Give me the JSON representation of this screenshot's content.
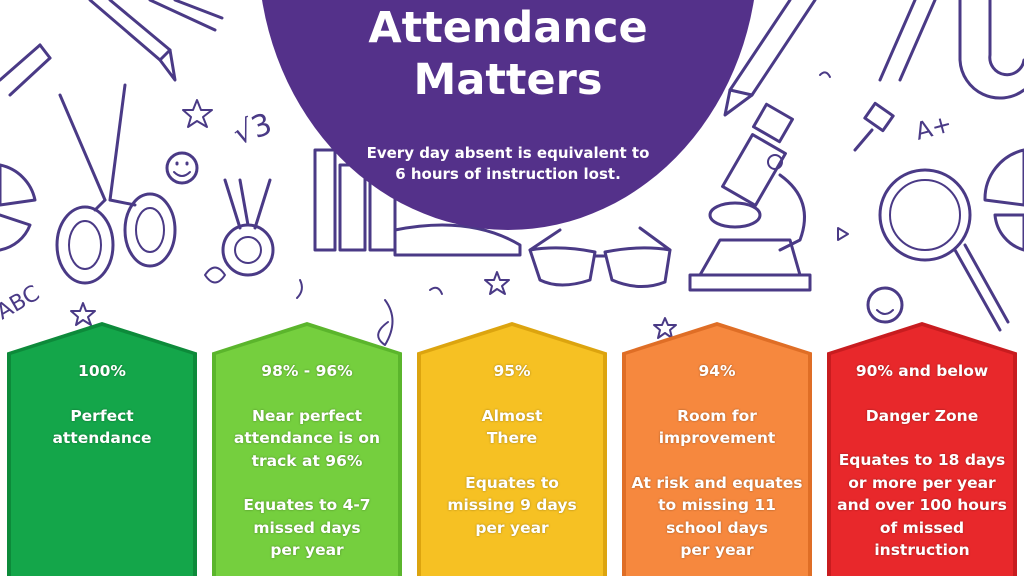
{
  "header": {
    "title_line1": "Attendance",
    "title_line2": "Matters",
    "subtitle_line1": "Every day absent is equivalent to",
    "subtitle_line2": "6 hours of instruction lost.",
    "circle_color": "#54318a"
  },
  "doodle_labels": {
    "sqrt": "√3",
    "abc": "ABC",
    "grade": "A+"
  },
  "tiers": [
    {
      "percent": "100%",
      "label": "Perfect\nattendance",
      "description": "",
      "color": "#14a64a",
      "border": "#0d8a3a"
    },
    {
      "percent": "98% - 96%",
      "label": "Near perfect\nattendance is on\ntrack at 96%",
      "description": "Equates to 4-7\nmissed days\nper year",
      "color": "#75cf3e",
      "border": "#5bb52c"
    },
    {
      "percent": "95%",
      "label": "Almost\nThere",
      "description": "Equates to\nmissing 9 days\nper year",
      "color": "#f6c123",
      "border": "#dca40f"
    },
    {
      "percent": "94%",
      "label": "Room for\nimprovement",
      "description": "At risk and equates\nto missing 11\nschool days\nper year",
      "color": "#f6883e",
      "border": "#df6e26"
    },
    {
      "percent": "90% and below",
      "label": "Danger Zone",
      "description": "Equates to 18 days\nor more per year\nand over 100 hours\nof missed\ninstruction",
      "color": "#e8282b",
      "border": "#c81c1f"
    }
  ]
}
